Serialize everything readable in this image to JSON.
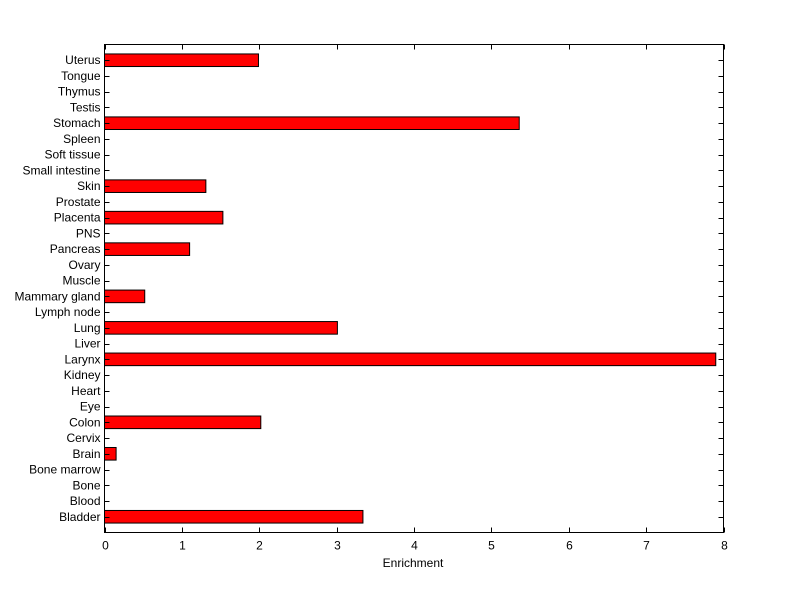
{
  "chart_data": {
    "type": "bar",
    "orientation": "horizontal",
    "title": "",
    "xlabel": "Enrichment",
    "ylabel": "",
    "xlim": [
      0,
      8
    ],
    "xticks": [
      "0",
      "1",
      "2",
      "3",
      "4",
      "5",
      "6",
      "7",
      "8"
    ],
    "grid": false,
    "bar_color": "#ff0000",
    "categories": [
      "Bladder",
      "Blood",
      "Bone",
      "Bone marrow",
      "Brain",
      "Cervix",
      "Colon",
      "Eye",
      "Heart",
      "Kidney",
      "Larynx",
      "Liver",
      "Lung",
      "Lymph node",
      "Mammary gland",
      "Muscle",
      "Ovary",
      "Pancreas",
      "PNS",
      "Placenta",
      "Prostate",
      "Skin",
      "Small intestine",
      "Soft tissue",
      "Spleen",
      "Stomach",
      "Testis",
      "Thymus",
      "Tongue",
      "Uterus"
    ],
    "values": [
      3.34,
      0,
      0,
      0,
      0.15,
      0,
      2.02,
      0,
      0,
      0,
      7.9,
      0,
      3.01,
      0,
      0.52,
      0,
      0,
      1.1,
      0,
      1.53,
      0,
      1.31,
      0,
      0,
      0,
      5.36,
      0,
      0,
      0,
      1.99
    ]
  }
}
